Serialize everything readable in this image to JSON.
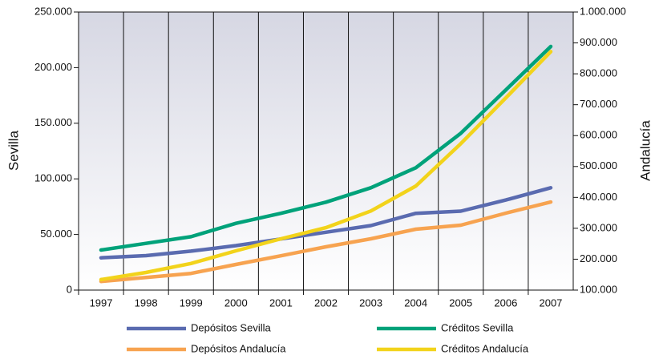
{
  "chart_data": {
    "type": "line",
    "categories": [
      "1997",
      "1998",
      "1999",
      "2000",
      "2001",
      "2002",
      "2003",
      "2004",
      "2005",
      "2006",
      "2007"
    ],
    "y_label": "Sevilla",
    "y2_label": "Andalucía",
    "ylim": [
      0,
      250000
    ],
    "yticks": [
      0,
      {
        "value": 50000,
        "label": "50.000"
      },
      {
        "value": 100000,
        "label": "100.000"
      },
      {
        "value": 150000,
        "label": "150.000"
      },
      {
        "value": 200000,
        "label": "200.000"
      },
      {
        "value": 250000,
        "label": "250.000"
      }
    ],
    "y2lim": [
      100000,
      1000000
    ],
    "y2ticks": [
      {
        "value": 100000,
        "label": "100.000"
      },
      {
        "value": 200000,
        "label": "200.000"
      },
      {
        "value": 300000,
        "label": "300.000"
      },
      {
        "value": 400000,
        "label": "400.000"
      },
      {
        "value": 500000,
        "label": "500.000"
      },
      {
        "value": 600000,
        "label": "600.000"
      },
      {
        "value": 700000,
        "label": "700.000"
      },
      {
        "value": 800000,
        "label": "800.000"
      },
      {
        "value": 900000,
        "label": "900.000"
      },
      {
        "value": 1000000,
        "label": "1.000.000"
      }
    ],
    "legend": "bottom",
    "series": [
      {
        "name": "Depósitos Sevilla",
        "color": "#5a6bb0",
        "values": [
          29000,
          31000,
          35000,
          40000,
          46000,
          52000,
          58000,
          69000,
          71000,
          81000,
          92000
        ]
      },
      {
        "name": "Créditos Sevilla",
        "color": "#00a27a",
        "values": [
          36000,
          42000,
          48000,
          60000,
          69000,
          79000,
          92000,
          110000,
          141000,
          180000,
          219000
        ]
      },
      {
        "name": "Depósitos Andalucía",
        "color": "#f7a350",
        "axis": "y2",
        "values": [
          128000,
          141000,
          154000,
          183000,
          211000,
          240000,
          266000,
          297000,
          310000,
          349000,
          385000
        ]
      },
      {
        "name": "Créditos Andalucía",
        "color": "#f2d31b",
        "axis": "y2",
        "values": [
          134000,
          157000,
          186000,
          227000,
          266000,
          302000,
          356000,
          437000,
          574000,
          722000,
          872000
        ]
      }
    ]
  }
}
